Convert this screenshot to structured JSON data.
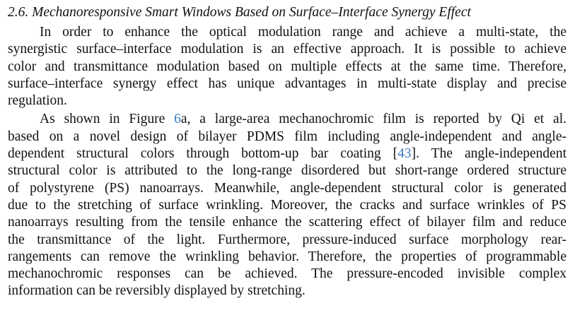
{
  "section": {
    "heading": "2.6. Mechanoresponsive Smart Windows Based on Surface–Interface Synergy Effect"
  },
  "paragraphs": [
    {
      "lines": [
        "In order to enhance the optical modulation range and achieve a multi-state, the",
        "synergistic surface–interface modulation is an effective approach. It is possible to achieve",
        "color and transmittance modulation based on multiple effects at the same time. Therefore,",
        "surface–interface synergy effect has unique advantages in multi-state display and precise",
        "regulation."
      ]
    },
    {
      "line0_pre": "As shown in Figure ",
      "figure_link": "6",
      "line0_post": "a, a large-area mechanochromic film is reported by Qi et al.",
      "line1": "based on a novel design of bilayer PDMS film including angle-independent and angle-",
      "line2_pre": "dependent structural colors through bottom-up bar coating [",
      "ref_link": "43",
      "line2_post": "]. The angle-independent",
      "lines": [
        "structural color is attributed to the long-range disordered but short-range ordered structure",
        "of polystyrene (PS) nanoarrays. Meanwhile, angle-dependent structural color is generated",
        "due to the stretching of surface wrinkling. Moreover, the cracks and surface wrinkles of PS",
        "nanoarrays resulting from the tensile enhance the scattering effect of bilayer film and reduce",
        "the transmittance of the light. Furthermore, pressure-induced surface morphology rear-",
        "rangements can remove the wrinkling behavior. Therefore, the properties of programmable",
        "mechanochromic responses can be achieved.  The pressure-encoded invisible complex",
        "information can be reversibly displayed by stretching."
      ]
    }
  ],
  "colors": {
    "link": "#3a7bbf",
    "text": "#111111"
  }
}
